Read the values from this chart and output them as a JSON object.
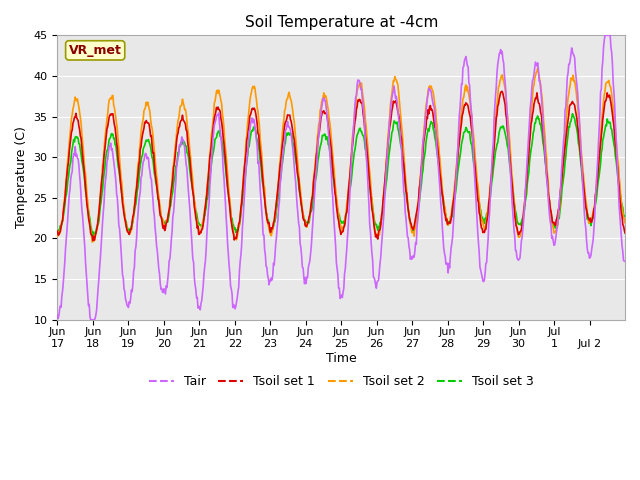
{
  "title": "Soil Temperature at -4cm",
  "xlabel": "Time",
  "ylabel": "Temperature (C)",
  "ylim": [
    10,
    45
  ],
  "background_color": "#ffffff",
  "plot_bg_color": "#e8e8e8",
  "grid_color": "#ffffff",
  "colors": {
    "Tair": "#cc66ff",
    "Tsoil set 1": "#dd0000",
    "Tsoil set 2": "#ff9900",
    "Tsoil set 3": "#00cc00"
  },
  "annotation": {
    "text": "VR_met",
    "fontsize": 9,
    "color": "#8b0000",
    "fontweight": "bold",
    "bbox_facecolor": "#ffffcc",
    "bbox_edgecolor": "#999900"
  },
  "xtick_labels": [
    "Jun\n17",
    "Jun\n18",
    "Jun\n19",
    "Jun\n20",
    "Jun\n21",
    "Jun\n22",
    "Jun\n23",
    "Jun\n24",
    "Jun\n25",
    "Jun\n26",
    "Jun\n27",
    "Jun\n28",
    "Jun\n29",
    "Jun\n30",
    "Jul\n1",
    " \nJul 2"
  ],
  "ytick_vals": [
    10,
    15,
    20,
    25,
    30,
    35,
    40,
    45
  ],
  "legend_fontsize": 9
}
